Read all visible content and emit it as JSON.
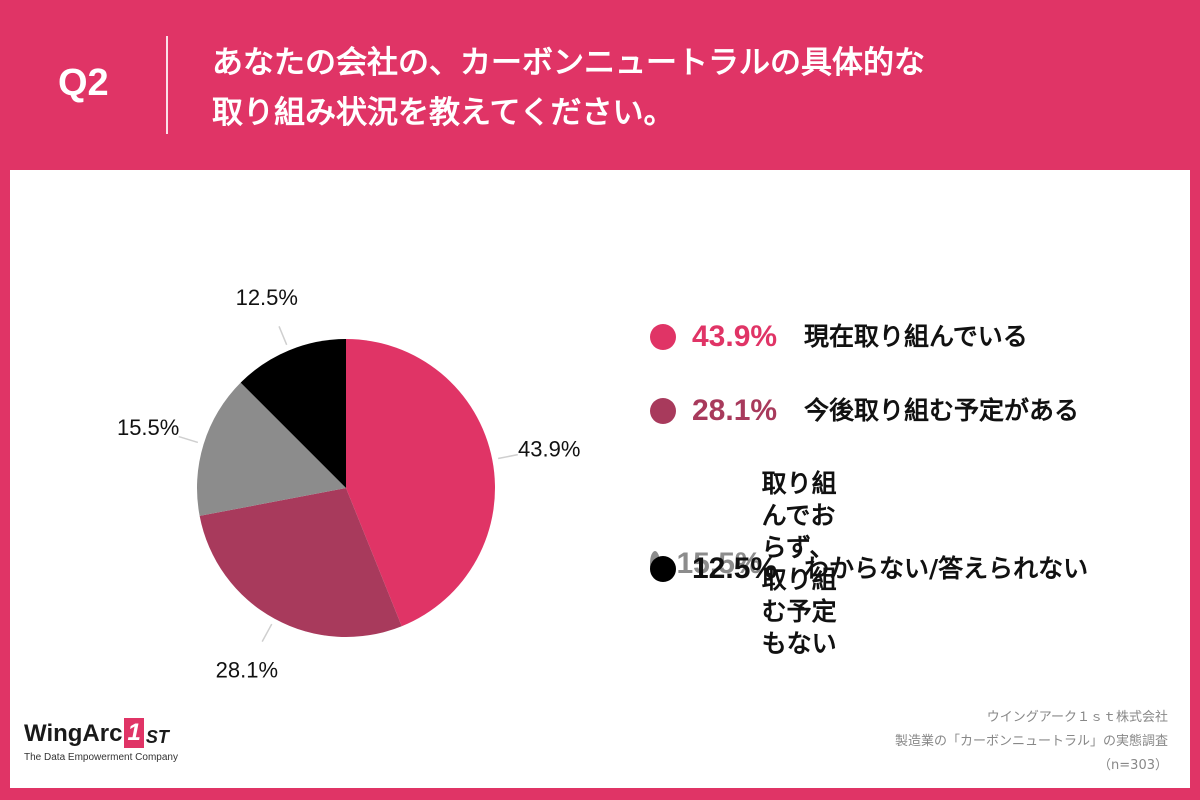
{
  "header": {
    "question_number": "Q2",
    "title_line1": "あなたの会社の、カーボンニュートラルの具体的な",
    "title_line2": "取り組み状況を教えてください。"
  },
  "chart_data": {
    "type": "pie",
    "title": "あなたの会社の、カーボンニュートラルの具体的な取り組み状況を教えてください。",
    "slices": [
      {
        "label": "現在取り組んでいる",
        "value": 43.9,
        "display": "43.9%",
        "color": "#e03466"
      },
      {
        "label": "今後取り組む予定がある",
        "value": 28.1,
        "display": "28.1%",
        "color": "#a83a5c"
      },
      {
        "label": "取り組んでおらず、\n取り組む予定もない",
        "value": 15.5,
        "display": "15.5%",
        "color": "#8c8c8c"
      },
      {
        "label": "わからない/答えられない",
        "value": 12.5,
        "display": "12.5%",
        "color": "#000000"
      }
    ]
  },
  "logo": {
    "brand": "WingArc",
    "brand_one": "1",
    "brand_st": "ST",
    "tagline": "The Data Empowerment Company"
  },
  "source": {
    "line1": "ウイングアーク１ｓｔ株式会社",
    "line2": "製造業の「カーボンニュートラル」の実態調査",
    "line3": "（n=303）"
  }
}
